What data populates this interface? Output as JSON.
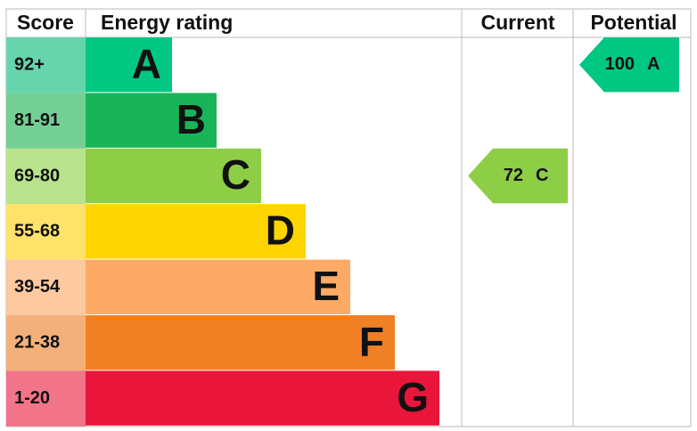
{
  "header": {
    "score": "Score",
    "rating": "Energy rating",
    "current": "Current",
    "potential": "Potential"
  },
  "rows": [
    {
      "score": "92+",
      "letter": "A"
    },
    {
      "score": "81-91",
      "letter": "B"
    },
    {
      "score": "69-80",
      "letter": "C"
    },
    {
      "score": "55-68",
      "letter": "D"
    },
    {
      "score": "39-54",
      "letter": "E"
    },
    {
      "score": "21-38",
      "letter": "F"
    },
    {
      "score": "1-20",
      "letter": "G"
    }
  ],
  "current": {
    "value": "72",
    "letter": "C"
  },
  "potential": {
    "value": "100",
    "letter": "A"
  }
}
